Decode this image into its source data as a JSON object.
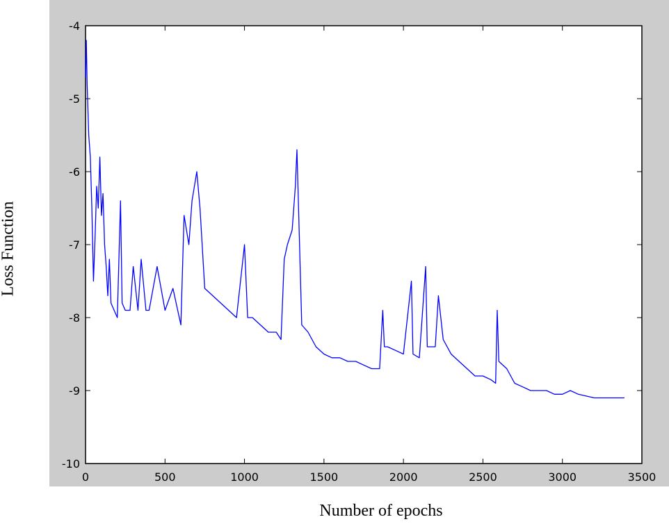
{
  "chart_data": {
    "type": "line",
    "title": "",
    "xlabel": "Number of epochs",
    "ylabel": "Loss Function",
    "xlim": [
      0,
      3500
    ],
    "ylim": [
      -10,
      -4
    ],
    "xticks": [
      0,
      500,
      1000,
      1500,
      2000,
      2500,
      3000,
      3500
    ],
    "yticks": [
      -4,
      -5,
      -6,
      -7,
      -8,
      -9,
      -10
    ],
    "grid": false,
    "legend": "none",
    "series": [
      {
        "color": "#0000ff",
        "x": [
          0,
          5,
          10,
          20,
          30,
          40,
          50,
          60,
          70,
          80,
          90,
          100,
          110,
          120,
          130,
          140,
          150,
          160,
          180,
          200,
          220,
          230,
          250,
          280,
          300,
          330,
          350,
          380,
          400,
          450,
          500,
          550,
          600,
          620,
          650,
          670,
          700,
          720,
          750,
          800,
          850,
          900,
          950,
          1000,
          1020,
          1050,
          1100,
          1150,
          1200,
          1230,
          1250,
          1270,
          1300,
          1320,
          1330,
          1340,
          1360,
          1400,
          1450,
          1500,
          1550,
          1600,
          1650,
          1700,
          1750,
          1800,
          1850,
          1870,
          1880,
          1900,
          1950,
          2000,
          2050,
          2060,
          2100,
          2140,
          2150,
          2200,
          2220,
          2250,
          2300,
          2350,
          2400,
          2450,
          2500,
          2550,
          2580,
          2590,
          2600,
          2650,
          2700,
          2750,
          2800,
          2850,
          2900,
          2950,
          3000,
          3050,
          3100,
          3200,
          3300,
          3390
        ],
        "y": [
          -4.7,
          -4.2,
          -4.8,
          -5.5,
          -5.8,
          -6.5,
          -7.5,
          -6.9,
          -6.2,
          -6.5,
          -5.8,
          -6.6,
          -6.3,
          -7.0,
          -7.3,
          -7.7,
          -7.2,
          -7.8,
          -7.9,
          -8.0,
          -6.4,
          -7.8,
          -7.9,
          -7.9,
          -7.3,
          -7.9,
          -7.2,
          -7.9,
          -7.9,
          -7.3,
          -7.9,
          -7.6,
          -8.1,
          -6.6,
          -7.0,
          -6.4,
          -6.0,
          -6.5,
          -7.6,
          -7.7,
          -7.8,
          -7.9,
          -8.0,
          -7.0,
          -8.0,
          -8.0,
          -8.1,
          -8.2,
          -8.2,
          -8.3,
          -7.2,
          -7.0,
          -6.8,
          -6.2,
          -5.7,
          -6.5,
          -8.1,
          -8.2,
          -8.4,
          -8.5,
          -8.55,
          -8.55,
          -8.6,
          -8.6,
          -8.65,
          -8.7,
          -8.7,
          -7.9,
          -8.4,
          -8.4,
          -8.45,
          -8.5,
          -7.5,
          -8.5,
          -8.55,
          -7.3,
          -8.4,
          -8.4,
          -7.7,
          -8.3,
          -8.5,
          -8.6,
          -8.7,
          -8.8,
          -8.8,
          -8.85,
          -8.9,
          -7.9,
          -8.6,
          -8.7,
          -8.9,
          -8.95,
          -9.0,
          -9.0,
          -9.0,
          -9.05,
          -9.05,
          -9.0,
          -9.05,
          -9.1,
          -9.1,
          -9.1
        ]
      }
    ]
  }
}
